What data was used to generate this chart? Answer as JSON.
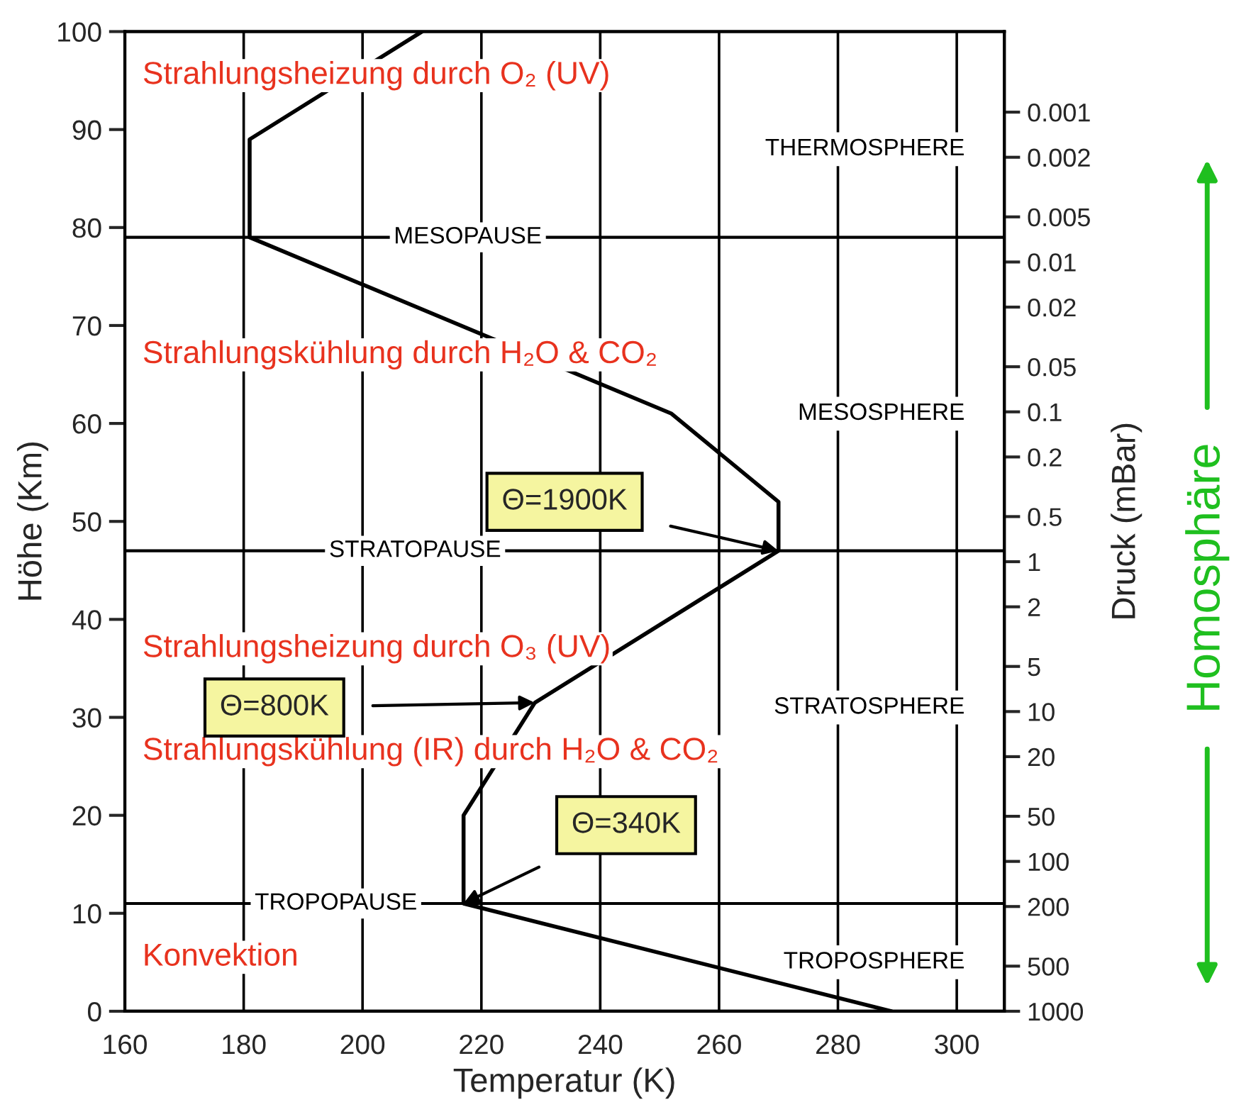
{
  "chart_data": {
    "type": "line",
    "xlabel": "Temperatur (K)",
    "ylabel": "Höhe (Km)",
    "y2label": "Druck (mBar)",
    "x": [
      289,
      217,
      217,
      229,
      270,
      270,
      252,
      181,
      181,
      210
    ],
    "series": [
      {
        "color": "#000000",
        "values": [
          0,
          11,
          20,
          31.5,
          47,
          52,
          61,
          79,
          89,
          100
        ]
      }
    ],
    "xlim": [
      160,
      308
    ],
    "xticks": [
      160,
      180,
      200,
      220,
      240,
      260,
      280,
      300
    ],
    "ylim": [
      0,
      100
    ],
    "yticks": [
      0,
      10,
      20,
      30,
      40,
      50,
      60,
      70,
      80,
      90,
      100
    ],
    "log": "y2",
    "y2lim": [
      1000,
      0.00029
    ],
    "y2ticks": [
      1000,
      500,
      200,
      100,
      50,
      20,
      10,
      5,
      2,
      1,
      0.5,
      0.2,
      0.1,
      0.05,
      0.02,
      0.01,
      0.005,
      0.002,
      0.001
    ],
    "grid": "x",
    "marker": "none",
    "line_style": "solid",
    "ref_lines": [
      {
        "axis": "y",
        "value": 79,
        "label": "MESOPAUSE",
        "color": "#000000"
      },
      {
        "axis": "y",
        "value": 47,
        "label": "STRATOPAUSE",
        "color": "#000000"
      },
      {
        "axis": "y",
        "value": 11,
        "label": "TROPOPAUSE",
        "color": "#000000"
      }
    ],
    "annotations": [
      "Strahlungsheizung durch O₂ (UV)",
      "Strahlungskühlung durch H₂O & CO₂",
      "Strahlungsheizung durch O₃ (UV)",
      "Strahlungskühlung (IR) durch H₂O & CO₂",
      "Konvektion",
      "THERMOSPHERE",
      "MESOSPHERE",
      "STRATOSPHERE",
      "TROPOSPHERE",
      "Homosphäre",
      "Θ=1900K",
      "Θ=800K",
      "Θ=340K"
    ]
  }
}
